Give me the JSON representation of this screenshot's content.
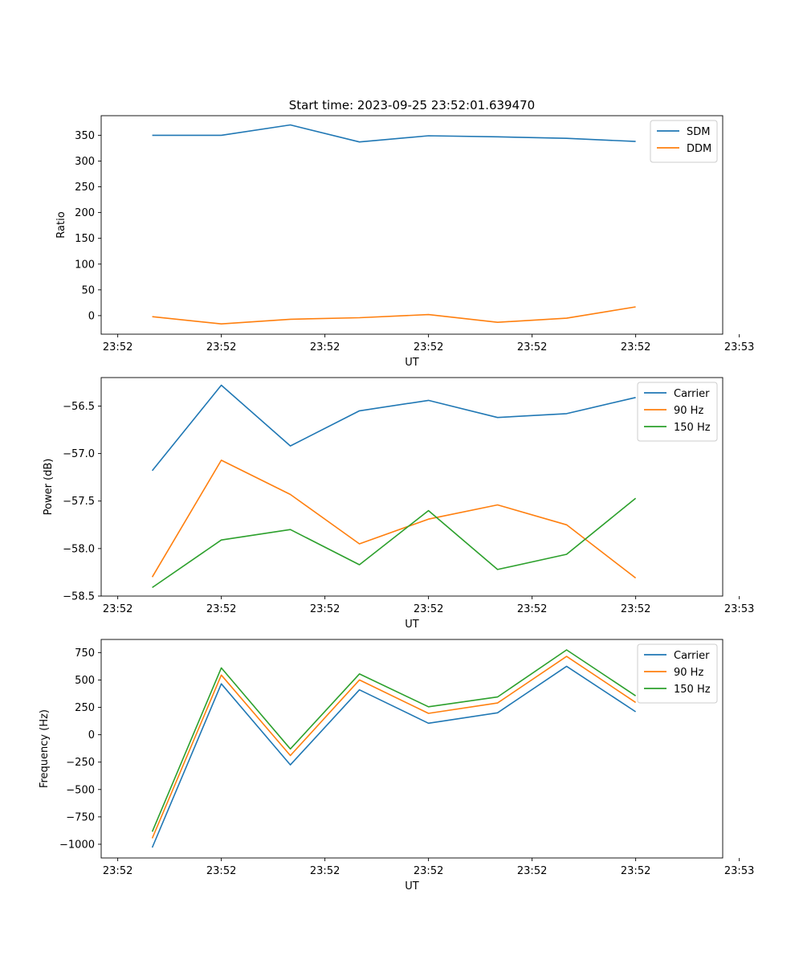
{
  "figure": {
    "title": "Start time: 2023-09-25 23:52:01.639470"
  },
  "chart_data": [
    {
      "type": "line",
      "title": "Start time: 2023-09-25 23:52:01.639470",
      "xlabel": "UT",
      "ylabel": "Ratio",
      "x": [
        1,
        2,
        3,
        4,
        5,
        6,
        7,
        8
      ],
      "xlim": [
        0.26,
        9.26
      ],
      "xticks": [
        0.5,
        2.0,
        3.5,
        5.0,
        6.5,
        8.0,
        9.5
      ],
      "xtick_labels": [
        "23:52",
        "23:52",
        "23:52",
        "23:52",
        "23:52",
        "23:52",
        "23:53"
      ],
      "ylim": [
        -36,
        388
      ],
      "yticks": [
        0,
        50,
        100,
        150,
        200,
        250,
        300,
        350
      ],
      "ytick_labels": [
        "0",
        "50",
        "100",
        "150",
        "200",
        "250",
        "300",
        "350"
      ],
      "legend_position": "top-right",
      "series": [
        {
          "name": "SDM",
          "color": "#1f77b4",
          "values": [
            350,
            350,
            370,
            337,
            349,
            347,
            344,
            338
          ]
        },
        {
          "name": "DDM",
          "color": "#ff7f0e",
          "values": [
            -2,
            -16,
            -7,
            -4,
            2,
            -13,
            -5,
            17
          ]
        }
      ]
    },
    {
      "type": "line",
      "title": "",
      "xlabel": "UT",
      "ylabel": "Power (dB)",
      "x": [
        1,
        2,
        3,
        4,
        5,
        6,
        7,
        8
      ],
      "xlim": [
        0.26,
        9.26
      ],
      "xticks": [
        0.5,
        2.0,
        3.5,
        5.0,
        6.5,
        8.0,
        9.5
      ],
      "xtick_labels": [
        "23:52",
        "23:52",
        "23:52",
        "23:52",
        "23:52",
        "23:52",
        "23:53"
      ],
      "ylim": [
        -58.5,
        -56.2
      ],
      "yticks": [
        -58.5,
        -58.0,
        -57.5,
        -57.0,
        -56.5
      ],
      "ytick_labels": [
        "−58.5",
        "−58.0",
        "−57.5",
        "−57.0",
        "−56.5"
      ],
      "legend_position": "top-right",
      "series": [
        {
          "name": "Carrier",
          "color": "#1f77b4",
          "values": [
            -57.18,
            -56.28,
            -56.92,
            -56.55,
            -56.44,
            -56.62,
            -56.58,
            -56.41
          ]
        },
        {
          "name": "90 Hz",
          "color": "#ff7f0e",
          "values": [
            -58.3,
            -57.07,
            -57.43,
            -57.95,
            -57.69,
            -57.54,
            -57.75,
            -58.31
          ]
        },
        {
          "name": "150 Hz",
          "color": "#2ca02c",
          "values": [
            -58.41,
            -57.91,
            -57.8,
            -58.17,
            -57.6,
            -58.22,
            -58.06,
            -57.47
          ]
        }
      ]
    },
    {
      "type": "line",
      "title": "",
      "xlabel": "UT",
      "ylabel": "Frequency (Hz)",
      "x": [
        1,
        2,
        3,
        4,
        5,
        6,
        7,
        8
      ],
      "xlim": [
        0.26,
        9.26
      ],
      "xticks": [
        0.5,
        2.0,
        3.5,
        5.0,
        6.5,
        8.0,
        9.5
      ],
      "xtick_labels": [
        "23:52",
        "23:52",
        "23:52",
        "23:52",
        "23:52",
        "23:52",
        "23:53"
      ],
      "ylim": [
        -1125,
        870
      ],
      "yticks": [
        -1000,
        -750,
        -500,
        -250,
        0,
        250,
        500,
        750
      ],
      "ytick_labels": [
        "−1000",
        "−750",
        "−500",
        "−250",
        "0",
        "250",
        "500",
        "750"
      ],
      "legend_position": "top-right",
      "series": [
        {
          "name": "Carrier",
          "color": "#1f77b4",
          "values": [
            -1030,
            465,
            -275,
            410,
            105,
            200,
            625,
            210
          ]
        },
        {
          "name": "90 Hz",
          "color": "#ff7f0e",
          "values": [
            -945,
            545,
            -190,
            500,
            195,
            290,
            715,
            295
          ]
        },
        {
          "name": "150 Hz",
          "color": "#2ca02c",
          "values": [
            -885,
            610,
            -130,
            555,
            255,
            345,
            775,
            355
          ]
        }
      ]
    }
  ]
}
